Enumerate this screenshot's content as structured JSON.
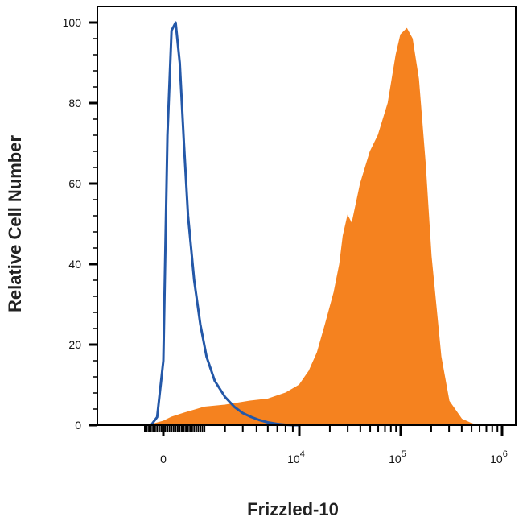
{
  "chart_data": {
    "type": "area",
    "xlabel": "Frizzled-10",
    "ylabel": "Relative Cell Number",
    "ylim": [
      0,
      100
    ],
    "y_ticks": [
      0,
      20,
      40,
      60,
      80,
      100
    ],
    "x_scale": "biexponential",
    "x_tick_labels": [
      {
        "base": "0",
        "exp": ""
      },
      {
        "base": "10",
        "exp": "4"
      },
      {
        "base": "10",
        "exp": "5"
      },
      {
        "base": "10",
        "exp": "6"
      }
    ],
    "series": [
      {
        "color": "#2458a8",
        "style": "line",
        "x": [
          -600,
          -300,
          0,
          200,
          400,
          600,
          800,
          1000,
          1200,
          1500,
          1800,
          2100,
          2500,
          3000,
          3500,
          4000,
          4600,
          5200,
          6000,
          7000,
          8000,
          9000,
          10000
        ],
        "y": [
          0,
          2,
          16,
          72,
          98,
          100,
          90,
          70,
          52,
          36,
          25,
          17,
          11,
          7,
          4.5,
          3,
          2,
          1.3,
          0.7,
          0.3,
          0.1,
          0,
          0
        ]
      },
      {
        "color": "#f5821f",
        "style": "filled",
        "x": [
          -700,
          0,
          400,
          1000,
          2000,
          3000,
          4500,
          6000,
          8000,
          10000,
          12500,
          15000,
          18000,
          22000,
          25000,
          27000,
          30000,
          33000,
          40000,
          50000,
          60000,
          75000,
          90000,
          100000,
          115000,
          130000,
          150000,
          175000,
          200000,
          250000,
          300000,
          400000,
          500000,
          600000
        ],
        "y": [
          0,
          1,
          2,
          3,
          4.5,
          5,
          6,
          6.5,
          8,
          10,
          13.5,
          18,
          25,
          33,
          40,
          47,
          52,
          50,
          60,
          68,
          72,
          80,
          92,
          97,
          98.5,
          96,
          86,
          65,
          42,
          17,
          6,
          1.5,
          0.4,
          0
        ]
      }
    ]
  }
}
